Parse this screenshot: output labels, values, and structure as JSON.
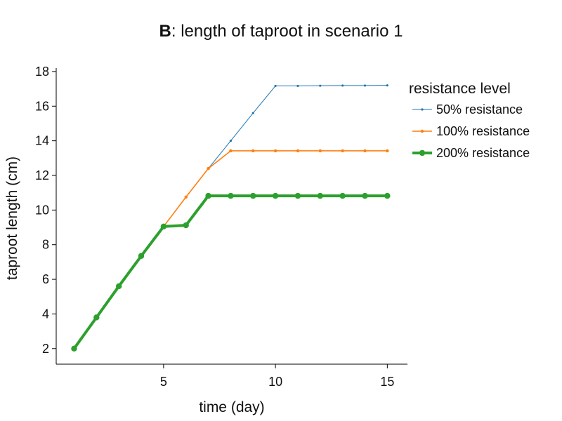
{
  "chart_data": {
    "type": "line",
    "title_prefix": "B",
    "title_rest": ": length of taproot in scenario 1",
    "xlabel": "time (day)",
    "ylabel": "taproot length (cm)",
    "xlim": [
      0.2,
      15.9
    ],
    "ylim": [
      1.1,
      18.2
    ],
    "xticks": [
      5,
      10,
      15
    ],
    "yticks": [
      2,
      4,
      6,
      8,
      10,
      12,
      14,
      16,
      18
    ],
    "grid": false,
    "legend": {
      "title": "resistance level",
      "placement": "top-right outside"
    },
    "series": [
      {
        "name": "50% resistance",
        "color": "#1f77b4",
        "x": [
          1,
          2,
          3,
          4,
          5,
          6,
          7,
          8,
          9,
          10,
          11,
          12,
          13,
          14,
          15
        ],
        "y": [
          2.0,
          3.8,
          5.6,
          7.35,
          9.05,
          10.75,
          12.4,
          14.0,
          15.6,
          17.17,
          17.17,
          17.18,
          17.19,
          17.19,
          17.2
        ]
      },
      {
        "name": "100% resistance",
        "color": "#ff7f0e",
        "x": [
          1,
          2,
          3,
          4,
          5,
          6,
          7,
          8,
          9,
          10,
          11,
          12,
          13,
          14,
          15
        ],
        "y": [
          2.0,
          3.8,
          5.6,
          7.35,
          9.05,
          10.75,
          12.4,
          13.42,
          13.42,
          13.42,
          13.42,
          13.42,
          13.42,
          13.42,
          13.42
        ]
      },
      {
        "name": "200% resistance",
        "color": "#2ca02c",
        "x": [
          1,
          2,
          3,
          4,
          5,
          6,
          7,
          8,
          9,
          10,
          11,
          12,
          13,
          14,
          15
        ],
        "y": [
          2.0,
          3.8,
          5.6,
          7.35,
          9.05,
          9.12,
          10.82,
          10.82,
          10.82,
          10.82,
          10.82,
          10.82,
          10.82,
          10.82,
          10.82
        ]
      }
    ]
  }
}
